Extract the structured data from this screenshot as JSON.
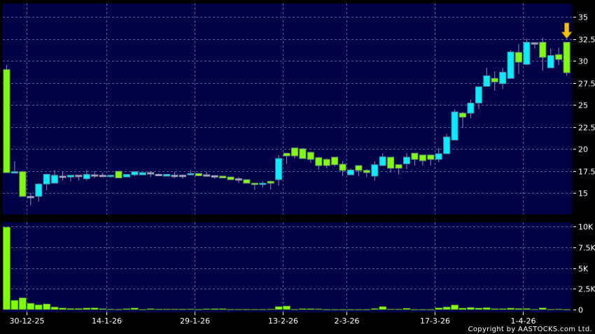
{
  "chart_data": [
    {
      "type": "candlestick",
      "panel": "price",
      "ylim": [
        13,
        36.5
      ],
      "y_ticks": [
        15,
        17.5,
        20,
        22.5,
        25,
        27.5,
        30,
        32.5,
        35
      ],
      "y_tick_labels": [
        "15",
        "17.5",
        "20",
        "22.5",
        "25",
        "27.5",
        "30",
        "32.5",
        "35"
      ],
      "grid": true,
      "candle_fields": [
        "open",
        "high",
        "low",
        "close"
      ],
      "candles": [
        [
          29.0,
          29.5,
          17.3,
          17.3
        ],
        [
          17.3,
          18.6,
          17.2,
          17.4
        ],
        [
          17.4,
          17.5,
          14.6,
          14.6
        ],
        [
          14.6,
          15.0,
          13.6,
          14.6
        ],
        [
          14.6,
          16.1,
          14.0,
          16.0
        ],
        [
          16.0,
          17.2,
          15.3,
          17.1
        ],
        [
          16.1,
          17.6,
          16.1,
          17.0
        ],
        [
          16.9,
          17.4,
          16.4,
          16.9
        ],
        [
          16.8,
          17.0,
          16.3,
          17.0
        ],
        [
          17.0,
          17.0,
          16.4,
          17.0
        ],
        [
          16.6,
          17.6,
          16.4,
          17.1
        ],
        [
          17.05,
          17.5,
          16.7,
          17.05
        ],
        [
          17.0,
          17.3,
          16.9,
          17.0
        ],
        [
          16.9,
          17.05,
          16.7,
          17.0
        ],
        [
          17.45,
          17.45,
          16.7,
          16.7
        ],
        [
          16.8,
          17.1,
          16.8,
          17.1
        ],
        [
          17.05,
          17.4,
          16.9,
          17.4
        ],
        [
          17.05,
          17.3,
          17.05,
          17.3
        ],
        [
          17.3,
          17.4,
          16.8,
          17.3
        ],
        [
          17.1,
          17.2,
          16.9,
          17.1
        ],
        [
          16.9,
          17.1,
          16.9,
          17.1
        ],
        [
          17.0,
          17.4,
          16.7,
          17.0
        ],
        [
          17.0,
          17.1,
          16.6,
          17.0
        ],
        [
          17.05,
          17.6,
          17.05,
          17.2
        ],
        [
          17.2,
          17.2,
          16.9,
          16.95
        ],
        [
          17.05,
          17.4,
          16.9,
          17.05
        ],
        [
          16.95,
          17.0,
          16.6,
          16.95
        ],
        [
          16.9,
          16.9,
          16.7,
          16.7
        ],
        [
          16.8,
          16.8,
          16.5,
          16.5
        ],
        [
          16.6,
          16.8,
          16.1,
          16.6
        ],
        [
          16.5,
          16.5,
          16.1,
          16.1
        ],
        [
          16.1,
          16.1,
          15.3,
          15.95
        ],
        [
          15.95,
          16.3,
          15.6,
          16.1
        ],
        [
          16.3,
          16.4,
          15.4,
          16.1
        ],
        [
          16.5,
          19.3,
          15.8,
          18.9
        ],
        [
          19.5,
          19.5,
          18.3,
          19.2
        ],
        [
          20.1,
          20.1,
          18.9,
          19.2
        ],
        [
          20.0,
          20.1,
          18.9,
          18.9
        ],
        [
          19.6,
          19.7,
          18.4,
          18.8
        ],
        [
          19.0,
          19.1,
          17.6,
          18.1
        ],
        [
          18.8,
          18.9,
          17.8,
          18.1
        ],
        [
          19.05,
          19.05,
          18.0,
          18.2
        ],
        [
          18.25,
          18.6,
          16.9,
          17.55
        ],
        [
          17.05,
          17.8,
          17.05,
          17.6
        ],
        [
          18.1,
          18.1,
          16.9,
          17.55
        ],
        [
          17.55,
          17.7,
          16.8,
          17.3
        ],
        [
          16.9,
          18.6,
          16.4,
          18.2
        ],
        [
          18.1,
          19.5,
          18.1,
          19.1
        ],
        [
          19.05,
          19.05,
          17.3,
          17.8
        ],
        [
          18.2,
          18.2,
          17.1,
          17.8
        ],
        [
          18.3,
          19.5,
          17.7,
          19.05
        ],
        [
          19.5,
          19.5,
          18.1,
          18.8
        ],
        [
          19.3,
          19.3,
          18.1,
          18.65
        ],
        [
          19.3,
          19.3,
          18.1,
          18.8
        ],
        [
          18.8,
          20.1,
          18.5,
          19.45
        ],
        [
          19.45,
          21.7,
          19.45,
          21.35
        ],
        [
          21.0,
          24.5,
          21.0,
          24.2
        ],
        [
          24.05,
          24.2,
          22.4,
          23.6
        ],
        [
          24.05,
          25.6,
          23.5,
          25.2
        ],
        [
          25.2,
          27.05,
          24.5,
          27.05
        ],
        [
          27.1,
          29.2,
          27.1,
          28.3
        ],
        [
          28.0,
          28.8,
          26.6,
          27.6
        ],
        [
          27.4,
          29.2,
          26.8,
          28.7
        ],
        [
          28.0,
          31.2,
          28.0,
          31.0
        ],
        [
          30.95,
          31.9,
          28.5,
          29.85
        ],
        [
          29.6,
          32.5,
          29.5,
          32.1
        ],
        [
          32.05,
          32.1,
          31.4,
          32.05
        ],
        [
          32.1,
          32.6,
          28.9,
          30.4
        ],
        [
          29.2,
          31.4,
          29.2,
          30.6
        ],
        [
          30.7,
          31.5,
          29.5,
          30.15
        ],
        [
          32.1,
          32.1,
          28.3,
          28.65
        ]
      ],
      "marker": {
        "type": "arrow-down",
        "candle": 70,
        "color": "#f5c400"
      },
      "colors": {
        "up": "#00f0ff",
        "down": "#80ff00",
        "unchanged": "#a0a0b8",
        "background": "#000048",
        "grid": "#5060a0"
      }
    },
    {
      "type": "bar",
      "panel": "volume",
      "ylim": [
        0,
        10.5
      ],
      "y_unit": "K",
      "y_ticks": [
        0,
        2.5,
        5,
        7.5,
        10
      ],
      "y_tick_labels": [
        "0",
        "2.5K",
        "5K",
        "7.5K",
        "10K"
      ],
      "grid": true,
      "values": [
        9.9,
        1.1,
        1.4,
        0.75,
        0.56,
        0.67,
        0.3,
        0.18,
        0.12,
        0.12,
        0.18,
        0.2,
        0.1,
        0.05,
        0.03,
        0.1,
        0.18,
        0.02,
        0.1,
        0.05,
        0.05,
        0.05,
        0.05,
        0.07,
        0.03,
        0.08,
        0.1,
        0.1,
        0.03,
        0.03,
        0.03,
        0.03,
        0.03,
        0.06,
        0.35,
        0.42,
        0.03,
        0.1,
        0.1,
        0.08,
        0.02,
        0.02,
        0.02,
        0.02,
        0.02,
        0.02,
        0.12,
        0.35,
        0.05,
        0.05,
        0.15,
        0.02,
        0.02,
        0.02,
        0.2,
        0.3,
        0.55,
        0.17,
        0.25,
        0.17,
        0.22,
        0.1,
        0.1,
        0.17,
        0.12,
        0.12,
        0.03,
        0.2,
        0.03,
        0.05,
        0.02
      ],
      "color": "#80ff00"
    }
  ],
  "x_axis": {
    "ticks": [
      {
        "label": "30-12-25",
        "candle": 3
      },
      {
        "label": "14-1-26",
        "candle": 13
      },
      {
        "label": "29-1-26",
        "candle": 24
      },
      {
        "label": "13-2-26",
        "candle": 35
      },
      {
        "label": "2-3-26",
        "candle": 43
      },
      {
        "label": "17-3-26",
        "candle": 54
      },
      {
        "label": "1-4-26",
        "candle": 65
      }
    ]
  },
  "footer": {
    "copyright": "Copyright by AASTOCKS.com Ltd."
  }
}
